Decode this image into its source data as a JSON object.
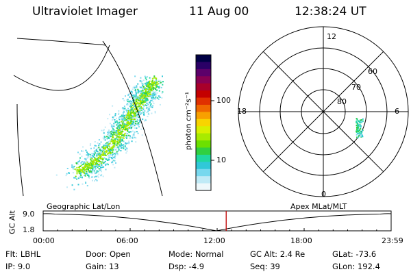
{
  "header": {
    "instrument": "Ultraviolet Imager",
    "date": "11 Aug 00",
    "time": "12:38:24 UT"
  },
  "colorbar": {
    "label": "photon cm⁻²s⁻¹",
    "ticks": [
      "100",
      "10"
    ],
    "colors": [
      "#000044",
      "#2a0066",
      "#5c006a",
      "#880052",
      "#a8002a",
      "#c40000",
      "#e03000",
      "#f06800",
      "#f8a000",
      "#f8d400",
      "#d8f000",
      "#a8ea00",
      "#6ce000",
      "#30d040",
      "#20d8a0",
      "#30c8d8",
      "#78d8ee",
      "#c0eaf6",
      "#eef8fb"
    ]
  },
  "polar_plot": {
    "mlt_labels": [
      "12",
      "6",
      "0",
      "18"
    ],
    "lat_labels": [
      "60",
      "70",
      "80"
    ]
  },
  "timeline": {
    "ylabel": "GC Alt",
    "yticks": [
      "9.0",
      "1.8"
    ],
    "left_label": "Geographic Lat/Lon",
    "right_label": "Apex MLat/MLT",
    "time_ticks": [
      "00:00",
      "06:00",
      "12:00",
      "18:00",
      "23:59"
    ],
    "current_time_fraction": 0.526
  },
  "info": {
    "flt": "Flt: LBHL",
    "ip": "IP:  9.0",
    "door": "Door: Open",
    "gain": "Gain: 13",
    "mode": "Mode: Normal",
    "dsp": "Dsp:   -4.9",
    "gc_alt": "GC Alt: 2.4 Re",
    "seq": "Seq: 39",
    "glat": "GLat:  -73.6",
    "glon": "GLon: 192.4"
  }
}
